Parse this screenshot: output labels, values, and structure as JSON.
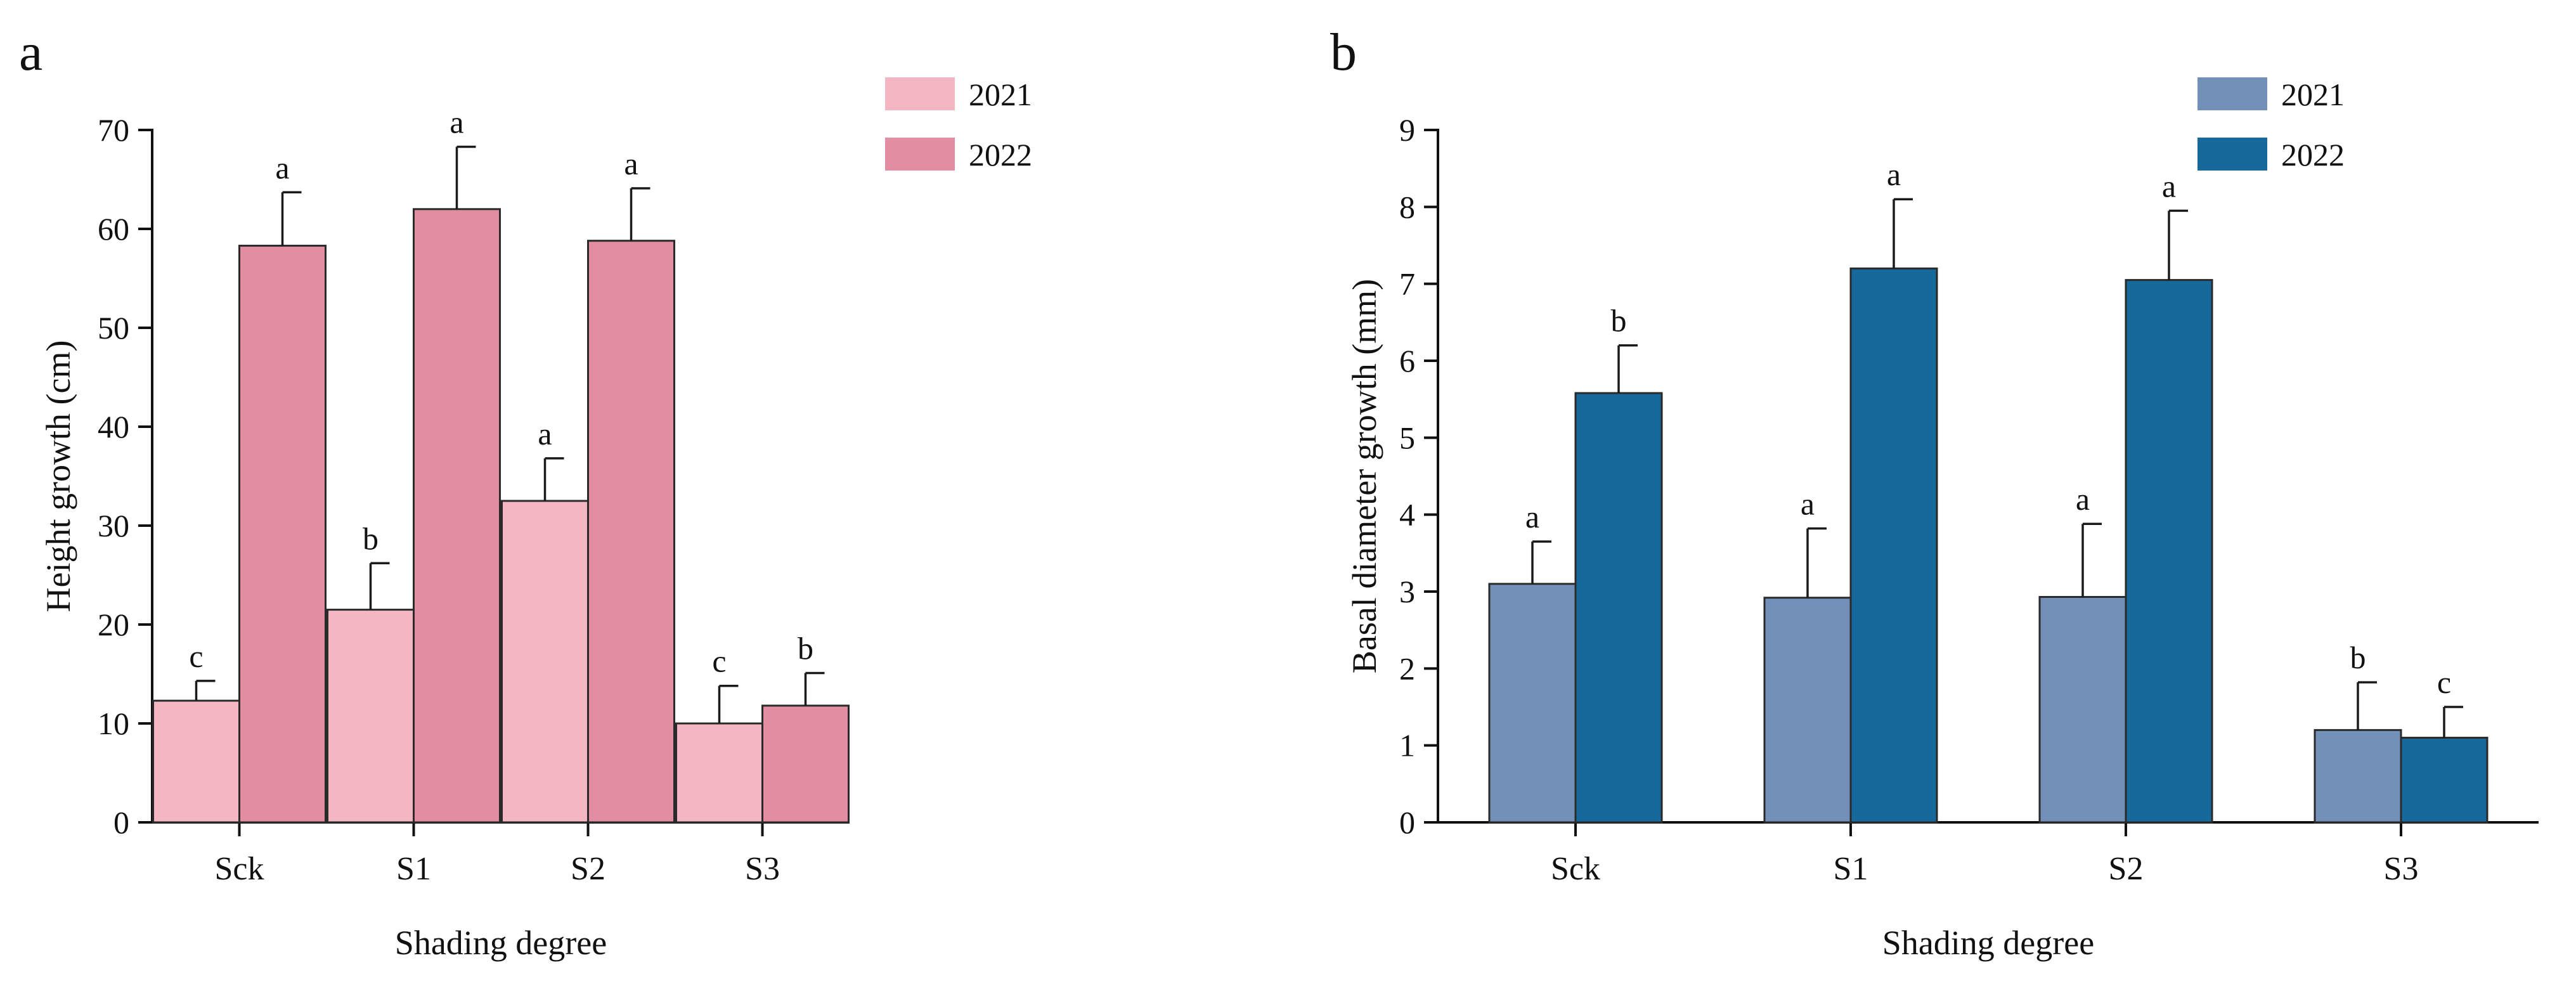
{
  "chart_data": [
    {
      "type": "bar",
      "panel_label": "a",
      "title": "",
      "xlabel": "Shading degree",
      "ylabel": "Height growth (cm)",
      "ylim": [
        0,
        70
      ],
      "yticks": [
        0,
        10,
        20,
        30,
        40,
        50,
        60,
        70
      ],
      "categories": [
        "Sck",
        "S1",
        "S2",
        "S3"
      ],
      "legend_position": "top-right",
      "grid": false,
      "series": [
        {
          "name": "2021",
          "color": "#f4b6c2",
          "values": [
            12.3,
            21.5,
            32.5,
            10.0
          ],
          "errors": [
            2.0,
            4.7,
            4.3,
            3.8
          ],
          "labels": [
            "c",
            "b",
            "a",
            "c"
          ]
        },
        {
          "name": "2022",
          "color": "#e28da1",
          "values": [
            58.3,
            62.0,
            58.8,
            11.8
          ],
          "errors": [
            5.4,
            6.3,
            5.3,
            3.3
          ],
          "labels": [
            "a",
            "a",
            "a",
            "b"
          ]
        }
      ]
    },
    {
      "type": "bar",
      "panel_label": "b",
      "title": "",
      "xlabel": "Shading degree",
      "ylabel": "Basal diameter growth (mm)",
      "ylim": [
        0,
        9
      ],
      "yticks": [
        0,
        1,
        2,
        3,
        4,
        5,
        6,
        7,
        8,
        9
      ],
      "categories": [
        "Sck",
        "S1",
        "S2",
        "S3"
      ],
      "legend_position": "top-right",
      "grid": false,
      "series": [
        {
          "name": "2021",
          "color": "#7390b8",
          "values": [
            3.1,
            2.92,
            2.93,
            1.2
          ],
          "errors": [
            0.55,
            0.9,
            0.95,
            0.62
          ],
          "labels": [
            "a",
            "a",
            "a",
            "b"
          ]
        },
        {
          "name": "2022",
          "color": "#16699a",
          "values": [
            5.58,
            7.2,
            7.05,
            1.1
          ],
          "errors": [
            0.62,
            0.9,
            0.9,
            0.4
          ],
          "labels": [
            "b",
            "a",
            "a",
            "c"
          ]
        }
      ]
    }
  ]
}
